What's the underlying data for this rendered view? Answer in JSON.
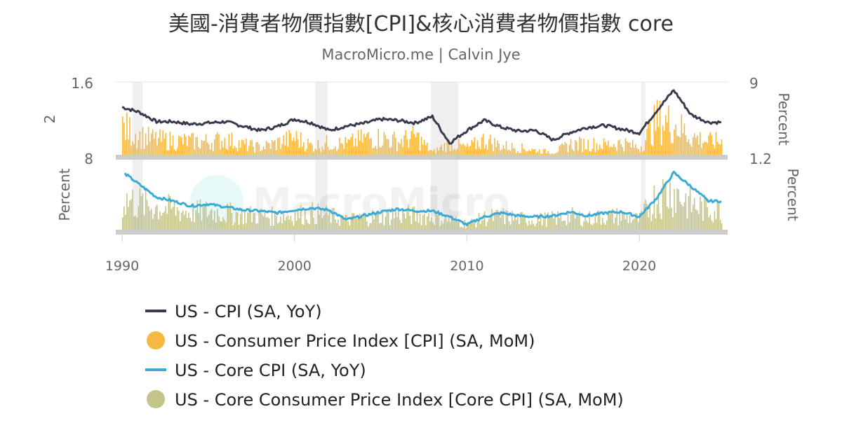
{
  "chart_data": {
    "type": "line",
    "title": "美國-消費者物價指數[CPI]&核心消費者物價指數 core",
    "subtitle": "MacroMicro.me | Calvin Jye",
    "watermark": "MacroMicro",
    "x_range": [
      1990,
      2024.8
    ],
    "x_ticks": [
      "1990",
      "2000",
      "2010",
      "2020"
    ],
    "top_panel": {
      "left_ticks": [
        "1.6",
        "8"
      ],
      "left_label": "2",
      "right_ticks": [
        "9",
        "1.2"
      ],
      "right_label": "Percent"
    },
    "bottom_panel": {
      "left_label": "Percent",
      "right_label": "Percent"
    },
    "recessions": [
      [
        1990.6,
        1991.2
      ],
      [
        2001.2,
        2001.9
      ],
      [
        2007.9,
        2009.5
      ],
      [
        2020.1,
        2020.35
      ]
    ],
    "years": [
      1990,
      1991,
      1992,
      1993,
      1994,
      1995,
      1996,
      1997,
      1998,
      1999,
      2000,
      2001,
      2002,
      2003,
      2004,
      2005,
      2006,
      2007,
      2008,
      2009,
      2010,
      2011,
      2012,
      2013,
      2014,
      2015,
      2016,
      2017,
      2018,
      2019,
      2020,
      2021,
      2022,
      2023,
      2024
    ],
    "series": [
      {
        "name": "US - CPI (SA, YoY)",
        "color": "#363b4e",
        "panel": "top",
        "kind": "line",
        "values": [
          5.3,
          4.5,
          3.0,
          3.0,
          2.6,
          2.8,
          3.0,
          2.3,
          1.6,
          2.2,
          3.4,
          2.8,
          1.6,
          2.3,
          2.7,
          3.4,
          3.2,
          2.8,
          3.8,
          -0.4,
          1.6,
          3.2,
          2.1,
          1.5,
          1.6,
          0.1,
          1.3,
          2.1,
          2.4,
          1.8,
          1.2,
          4.7,
          8.0,
          4.1,
          2.9
        ]
      },
      {
        "name": "US - Consumer Price Index [CPI] (SA, MoM)",
        "color": "#f5b942",
        "panel": "top",
        "kind": "bar",
        "values": [
          0.45,
          0.3,
          0.25,
          0.23,
          0.22,
          0.22,
          0.25,
          0.17,
          0.13,
          0.2,
          0.28,
          0.15,
          0.2,
          0.18,
          0.27,
          0.28,
          0.22,
          0.3,
          0.05,
          0.2,
          0.12,
          0.25,
          0.15,
          0.12,
          0.08,
          0.05,
          0.18,
          0.18,
          0.17,
          0.2,
          0.12,
          0.55,
          0.5,
          0.3,
          0.22
        ]
      },
      {
        "name": "US - Core CPI (SA, YoY)",
        "color": "#3aabd6",
        "panel": "bottom",
        "kind": "line",
        "values": [
          null,
          5.0,
          3.7,
          3.3,
          2.8,
          3.0,
          2.7,
          2.4,
          2.3,
          2.1,
          2.4,
          2.6,
          2.4,
          1.4,
          1.8,
          2.2,
          2.5,
          2.3,
          2.3,
          1.7,
          0.9,
          1.7,
          2.1,
          1.8,
          1.7,
          1.8,
          2.2,
          1.8,
          2.1,
          2.2,
          1.7,
          3.6,
          6.2,
          4.8,
          3.3
        ]
      },
      {
        "name": "US - Core Consumer Price Index [Core CPI] (SA, MoM)",
        "color": "#c4c48a",
        "panel": "bottom",
        "kind": "bar",
        "values": [
          0.4,
          0.35,
          0.3,
          0.27,
          0.23,
          0.25,
          0.22,
          0.2,
          0.19,
          0.18,
          0.2,
          0.22,
          0.19,
          0.13,
          0.17,
          0.18,
          0.21,
          0.19,
          0.18,
          0.14,
          0.08,
          0.16,
          0.18,
          0.15,
          0.14,
          0.15,
          0.18,
          0.15,
          0.18,
          0.18,
          0.14,
          0.45,
          0.5,
          0.33,
          0.27
        ]
      }
    ]
  }
}
